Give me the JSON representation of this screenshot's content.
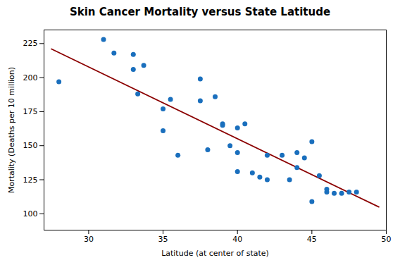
{
  "chart_data": {
    "type": "scatter",
    "title": "Skin Cancer Mortality versus State Latitude",
    "xlabel": "Latitude (at center of state)",
    "ylabel": "Mortality (Deaths per 10 million)",
    "xlim": [
      27,
      50
    ],
    "ylim": [
      88,
      235
    ],
    "xticks": [
      30,
      35,
      40,
      45,
      50
    ],
    "yticks": [
      100,
      125,
      150,
      175,
      200,
      225
    ],
    "series": [
      {
        "type": "scatter",
        "color": "#1a6fbd",
        "x": [
          28.0,
          31.0,
          31.7,
          33.0,
          33.0,
          33.3,
          33.7,
          35.0,
          35.0,
          35.5,
          36.0,
          37.5,
          37.5,
          38.0,
          38.5,
          39.0,
          39.0,
          39.5,
          40.0,
          40.0,
          40.0,
          40.5,
          41.0,
          41.5,
          42.0,
          42.0,
          43.0,
          43.5,
          44.0,
          44.0,
          44.5,
          45.0,
          45.0,
          45.5,
          46.0,
          46.0,
          46.5,
          47.0,
          47.5,
          48.0
        ],
        "values": [
          197,
          228,
          218,
          217,
          206,
          188,
          209,
          161,
          177,
          184,
          143,
          199,
          183,
          147,
          186,
          166,
          165,
          150,
          163,
          131,
          145,
          166,
          130,
          127,
          143,
          125,
          143,
          125,
          134,
          145,
          141,
          109,
          153,
          128,
          118,
          116,
          115,
          115,
          116,
          116
        ]
      },
      {
        "type": "line",
        "color": "#8b0000",
        "x": [
          27.5,
          49.5
        ],
        "values": [
          221,
          105
        ]
      }
    ]
  }
}
